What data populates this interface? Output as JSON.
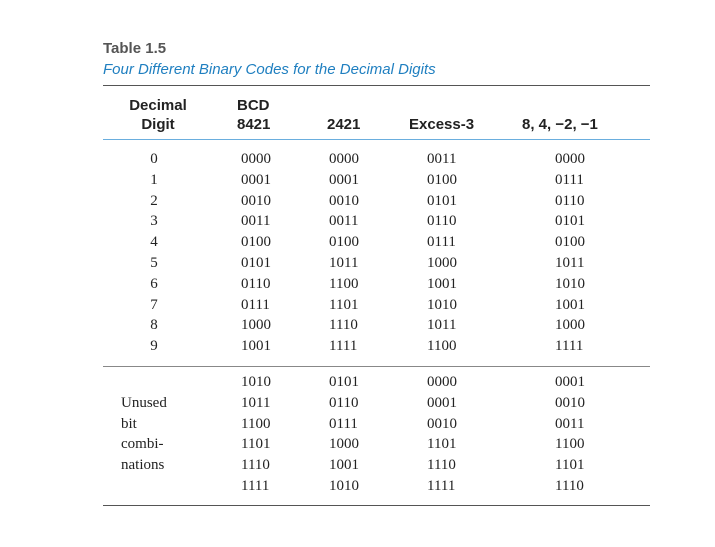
{
  "table": {
    "label": "Table 1.5",
    "caption": "Four Different Binary Codes for the Decimal Digits",
    "headers": {
      "digit": [
        "Decimal",
        "Digit"
      ],
      "bcd": [
        "BCD",
        "8421"
      ],
      "c2421": "2421",
      "excess3": "Excess-3",
      "c84n2n1": "8, 4, −2, −1"
    },
    "rows": [
      {
        "digit": "0",
        "bcd": "0000",
        "c2421": "0000",
        "excess3": "0011",
        "c84n2n1": "0000"
      },
      {
        "digit": "1",
        "bcd": "0001",
        "c2421": "0001",
        "excess3": "0100",
        "c84n2n1": "0111"
      },
      {
        "digit": "2",
        "bcd": "0010",
        "c2421": "0010",
        "excess3": "0101",
        "c84n2n1": "0110"
      },
      {
        "digit": "3",
        "bcd": "0011",
        "c2421": "0011",
        "excess3": "0110",
        "c84n2n1": "0101"
      },
      {
        "digit": "4",
        "bcd": "0100",
        "c2421": "0100",
        "excess3": "0111",
        "c84n2n1": "0100"
      },
      {
        "digit": "5",
        "bcd": "0101",
        "c2421": "1011",
        "excess3": "1000",
        "c84n2n1": "1011"
      },
      {
        "digit": "6",
        "bcd": "0110",
        "c2421": "1100",
        "excess3": "1001",
        "c84n2n1": "1010"
      },
      {
        "digit": "7",
        "bcd": "0111",
        "c2421": "1101",
        "excess3": "1010",
        "c84n2n1": "1001"
      },
      {
        "digit": "8",
        "bcd": "1000",
        "c2421": "1110",
        "excess3": "1011",
        "c84n2n1": "1000"
      },
      {
        "digit": "9",
        "bcd": "1001",
        "c2421": "1111",
        "excess3": "1100",
        "c84n2n1": "1111"
      }
    ],
    "unused": {
      "label_lines": [
        "Unused",
        "bit",
        "combi-",
        "nations"
      ],
      "rows": [
        {
          "bcd": "1010",
          "c2421": "0101",
          "excess3": "0000",
          "c84n2n1": "0001"
        },
        {
          "bcd": "1011",
          "c2421": "0110",
          "excess3": "0001",
          "c84n2n1": "0010"
        },
        {
          "bcd": "1100",
          "c2421": "0111",
          "excess3": "0010",
          "c84n2n1": "0011"
        },
        {
          "bcd": "1101",
          "c2421": "1000",
          "excess3": "1101",
          "c84n2n1": "1100"
        },
        {
          "bcd": "1110",
          "c2421": "1001",
          "excess3": "1110",
          "c84n2n1": "1101"
        },
        {
          "bcd": "1111",
          "c2421": "1010",
          "excess3": "1111",
          "c84n2n1": "1110"
        }
      ]
    },
    "colors": {
      "caption": "#1f7fc0",
      "header_rule": "#6aaede",
      "label": "#555555"
    }
  }
}
